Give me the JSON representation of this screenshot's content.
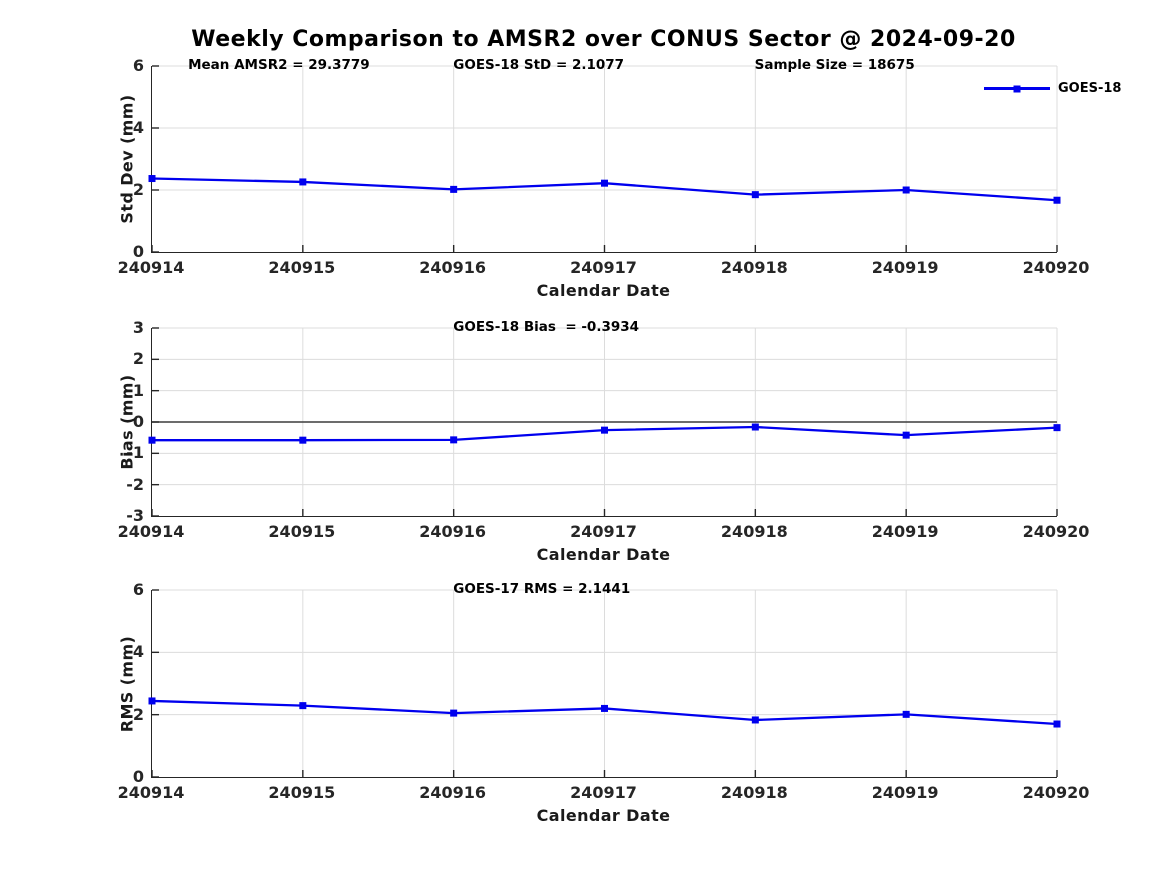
{
  "page": {
    "title": "Weekly Comparison to AMSR2 over CONUS Sector @ 2024-09-20",
    "background": "#ffffff"
  },
  "legend": {
    "label": "GOES-18",
    "color": "#0000ee",
    "position": "top-right"
  },
  "colors": {
    "series_blue": "#0000ee",
    "gridline": "#dcdcdc",
    "axis": "#262626",
    "zero_line": "#3c3c3c",
    "text": "#000000"
  },
  "chart_data": [
    {
      "type": "line",
      "ylabel": "Std Dev (mm)",
      "xlabel": "Calendar Date",
      "ylim": [
        0,
        6
      ],
      "yticks": [
        0,
        2,
        4,
        6
      ],
      "grid": true,
      "legend_position": "top-right",
      "categories": [
        "240914",
        "240915",
        "240916",
        "240917",
        "240918",
        "240919",
        "240920"
      ],
      "series": [
        {
          "name": "GOES-18",
          "color": "#0000ee",
          "marker": "square",
          "values": [
            2.37,
            2.26,
            2.02,
            2.22,
            1.85,
            2.0,
            1.67
          ]
        }
      ],
      "annotations": [
        {
          "text": "Mean AMSR2 = 29.3779",
          "x_pct": 4.1
        },
        {
          "text": "GOES-18 StD = 2.1077",
          "x_pct": 33.4
        },
        {
          "text": "Sample Size = 18675",
          "x_pct": 66.7
        }
      ],
      "zero_line": false
    },
    {
      "type": "line",
      "ylabel": "Bias (mm)",
      "xlabel": "Calendar Date",
      "ylim": [
        -3,
        3
      ],
      "yticks": [
        -3,
        -2,
        -1,
        0,
        1,
        2,
        3
      ],
      "grid": true,
      "categories": [
        "240914",
        "240915",
        "240916",
        "240917",
        "240918",
        "240919",
        "240920"
      ],
      "series": [
        {
          "name": "GOES-18",
          "color": "#0000ee",
          "marker": "square",
          "values": [
            -0.58,
            -0.58,
            -0.57,
            -0.26,
            -0.16,
            -0.42,
            -0.18
          ]
        }
      ],
      "annotations": [
        {
          "text": "GOES-18 Bias  = -0.3934",
          "x_pct": 33.4
        }
      ],
      "zero_line": true
    },
    {
      "type": "line",
      "ylabel": "RMS (mm)",
      "xlabel": "Calendar Date",
      "ylim": [
        0,
        6
      ],
      "yticks": [
        0,
        2,
        4,
        6
      ],
      "grid": true,
      "categories": [
        "240914",
        "240915",
        "240916",
        "240917",
        "240918",
        "240919",
        "240920"
      ],
      "series": [
        {
          "name": "GOES-18",
          "color": "#0000ee",
          "marker": "square",
          "values": [
            2.44,
            2.29,
            2.05,
            2.2,
            1.83,
            2.01,
            1.7
          ]
        }
      ],
      "annotations": [
        {
          "text": "GOES-17 RMS = 2.1441",
          "x_pct": 33.4
        }
      ],
      "zero_line": false
    }
  ]
}
